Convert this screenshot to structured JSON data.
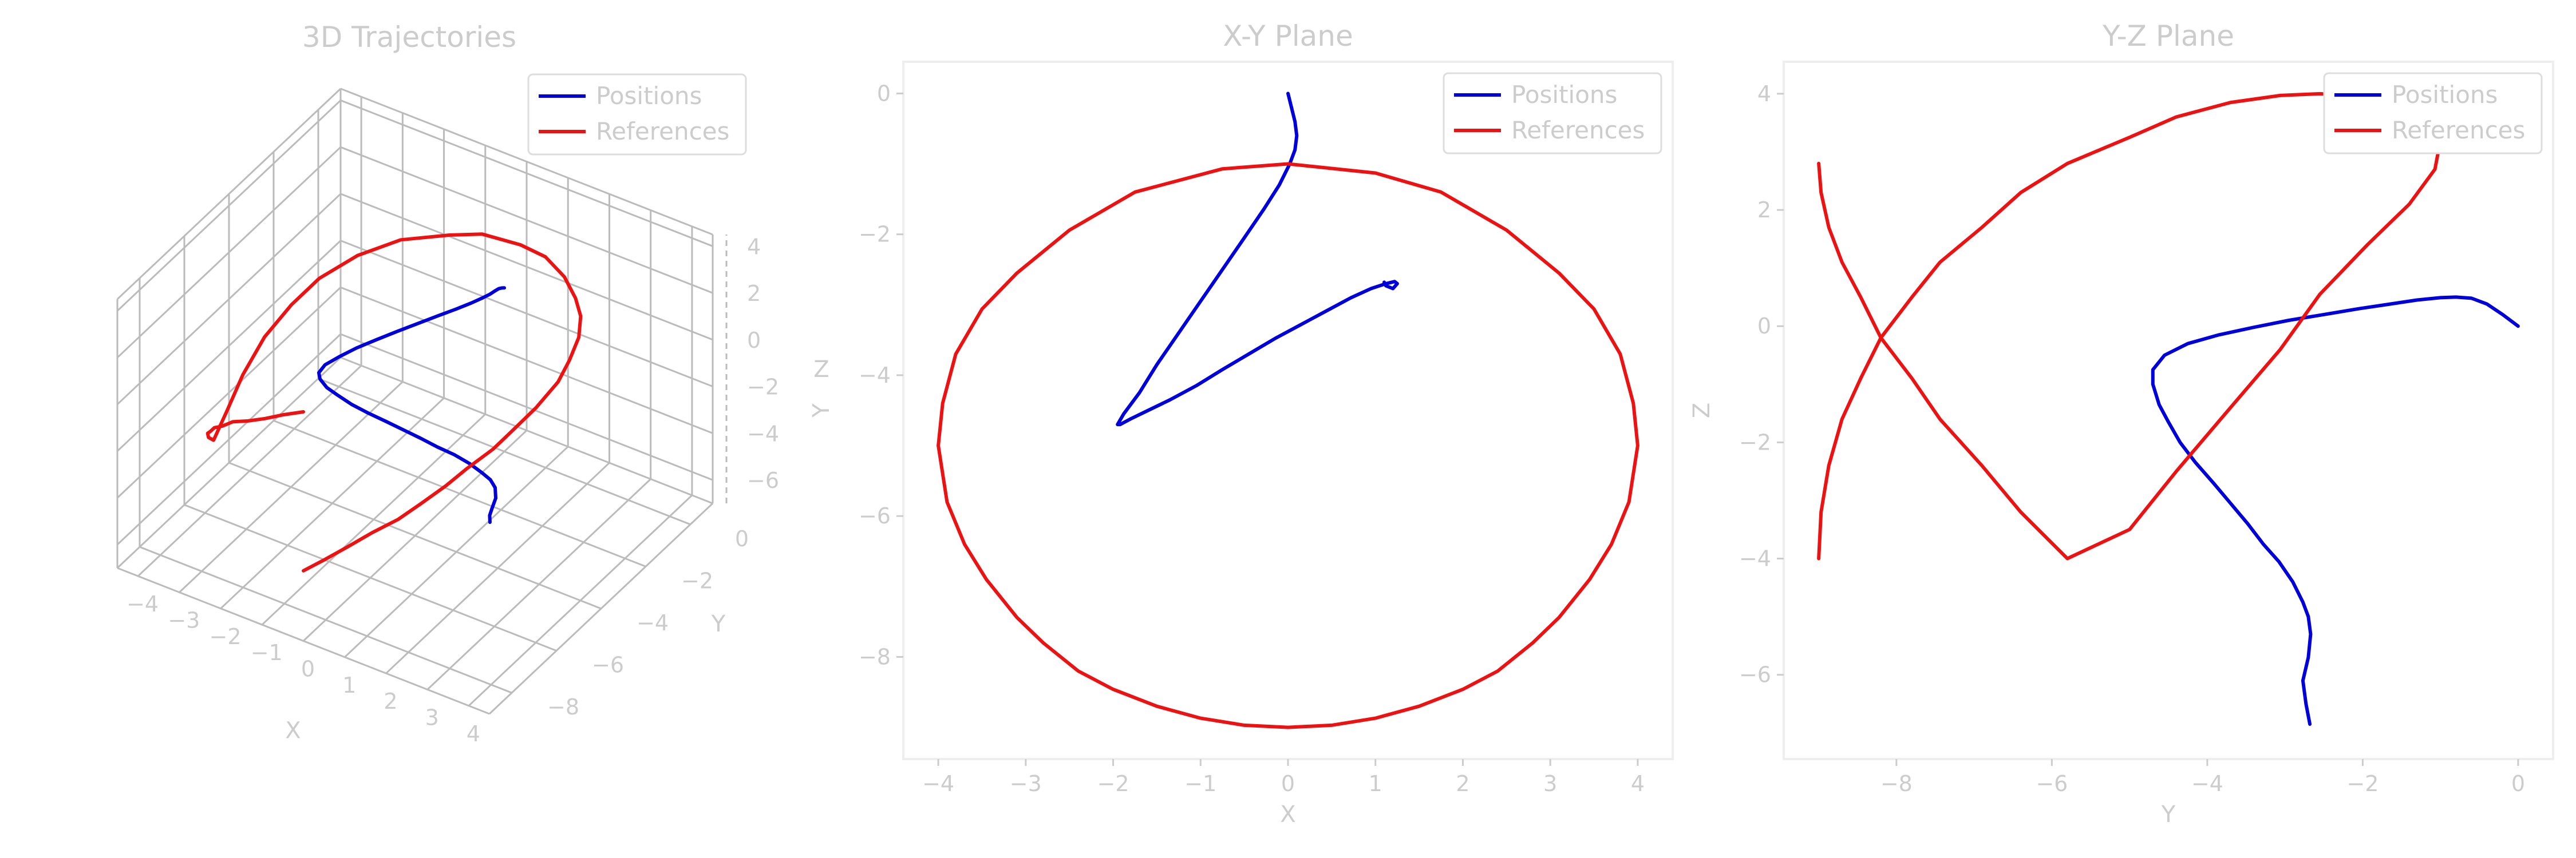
{
  "chart_data": [
    {
      "type": "line3d",
      "title": "3D Trajectories",
      "xlabel": "X",
      "ylabel": "Y",
      "zlabel": "Z",
      "xlim": [
        -4.5,
        4.5
      ],
      "ylim": [
        -9,
        1
      ],
      "zlim": [
        -7,
        4.5
      ],
      "xticks": [
        -4,
        -3,
        -2,
        -1,
        0,
        1,
        2,
        3,
        4
      ],
      "yticks": [
        -8,
        -6,
        -4,
        -2,
        0
      ],
      "zticks": [
        -6,
        -4,
        -2,
        0,
        2,
        4
      ],
      "legend": {
        "position": "top-right",
        "entries": [
          "Positions",
          "References"
        ]
      },
      "series": [
        {
          "name": "Positions",
          "color": "#0000dd",
          "source": "positions"
        },
        {
          "name": "References",
          "color": "#ee1111",
          "source": "references"
        }
      ]
    },
    {
      "type": "line",
      "title": "X-Y Plane",
      "xlabel": "X",
      "ylabel": "Y",
      "xlim": [
        -4.4,
        4.4
      ],
      "ylim": [
        -9.45,
        0.45
      ],
      "xticks": [
        -4,
        -3,
        -2,
        -1,
        0,
        1,
        2,
        3,
        4
      ],
      "yticks": [
        -8,
        -6,
        -4,
        -2,
        0
      ],
      "legend": {
        "position": "top-right",
        "entries": [
          "Positions",
          "References"
        ]
      },
      "series": [
        {
          "name": "Positions",
          "color": "#0000dd",
          "source": "positions",
          "x_dim": "x",
          "y_dim": "y"
        },
        {
          "name": "References",
          "color": "#ee1111",
          "source": "references",
          "x_dim": "x",
          "y_dim": "y"
        }
      ]
    },
    {
      "type": "line",
      "title": "Y-Z Plane",
      "xlabel": "Y",
      "ylabel": "Z",
      "xlim": [
        -9.45,
        0.45
      ],
      "ylim": [
        -7.45,
        4.55
      ],
      "xticks": [
        -8,
        -6,
        -4,
        -2,
        0
      ],
      "yticks": [
        -6,
        -4,
        -2,
        0,
        2,
        4
      ],
      "legend": {
        "position": "top-right",
        "entries": [
          "Positions",
          "References"
        ]
      },
      "series": [
        {
          "name": "Positions",
          "color": "#0000dd",
          "source": "positions",
          "x_dim": "y",
          "y_dim": "z"
        },
        {
          "name": "References",
          "color": "#ee1111",
          "source": "references",
          "x_dim": "y",
          "y_dim": "z"
        }
      ]
    }
  ],
  "trajectories": {
    "positions": {
      "x": [
        0.0,
        0.04,
        0.08,
        0.1,
        0.08,
        0.02,
        -0.1,
        -0.28,
        -0.5,
        -0.75,
        -1.0,
        -1.25,
        -1.5,
        -1.7,
        -1.88,
        -1.95,
        -1.92,
        -1.8,
        -1.6,
        -1.35,
        -1.05,
        -0.75,
        -0.45,
        -0.15,
        0.15,
        0.45,
        0.72,
        0.95,
        1.12,
        1.22,
        1.25,
        1.2,
        1.12,
        1.1
      ],
      "y": [
        0.0,
        -0.2,
        -0.4,
        -0.6,
        -0.8,
        -1.0,
        -1.3,
        -1.65,
        -2.05,
        -2.5,
        -2.95,
        -3.4,
        -3.85,
        -4.25,
        -4.55,
        -4.7,
        -4.7,
        -4.62,
        -4.5,
        -4.35,
        -4.15,
        -3.92,
        -3.7,
        -3.48,
        -3.28,
        -3.08,
        -2.9,
        -2.77,
        -2.7,
        -2.67,
        -2.7,
        -2.77,
        -2.73,
        -2.68
      ],
      "z": [
        0.0,
        0.2,
        0.38,
        0.48,
        0.5,
        0.49,
        0.45,
        0.38,
        0.3,
        0.2,
        0.1,
        -0.02,
        -0.15,
        -0.3,
        -0.5,
        -0.75,
        -1.0,
        -1.35,
        -1.65,
        -2.0,
        -2.35,
        -2.7,
        -3.05,
        -3.4,
        -3.75,
        -4.05,
        -4.4,
        -4.75,
        -5.0,
        -5.3,
        -5.7,
        -6.1,
        -6.5,
        -6.85
      ]
    },
    "references": {
      "x": [
        0.0,
        0.5,
        1.0,
        1.5,
        2.0,
        2.4,
        2.8,
        3.1,
        3.45,
        3.7,
        3.9,
        4.0,
        3.95,
        3.8,
        3.5,
        3.1,
        2.5,
        1.75,
        1.0,
        0.0,
        -0.75,
        -1.75,
        -2.5,
        -3.1,
        -3.5,
        -3.8,
        -3.95,
        -4.0,
        -3.9,
        -3.7,
        -3.45,
        -3.1,
        -2.8,
        -2.4,
        -2.0,
        -1.5,
        -1.0,
        -0.5,
        0.0
      ],
      "y": [
        -9.0,
        -8.97,
        -8.87,
        -8.7,
        -8.46,
        -8.2,
        -7.8,
        -7.44,
        -6.9,
        -6.4,
        -5.8,
        -5.0,
        -4.4,
        -3.7,
        -3.06,
        -2.55,
        -1.94,
        -1.4,
        -1.13,
        -1.0,
        -1.07,
        -1.4,
        -1.94,
        -2.55,
        -3.06,
        -3.7,
        -4.4,
        -5.0,
        -5.8,
        -6.4,
        -6.9,
        -7.44,
        -7.8,
        -8.2,
        -8.46,
        -8.7,
        -8.87,
        -8.97,
        -9.0
      ],
      "z": [
        -4.0,
        -3.2,
        -2.4,
        -1.6,
        -0.9,
        -0.2,
        0.5,
        1.1,
        1.7,
        2.3,
        2.8,
        3.25,
        3.6,
        3.85,
        3.97,
        4.0,
        3.95,
        3.8,
        3.55,
        3.2,
        2.7,
        2.1,
        1.4,
        0.55,
        -0.4,
        -1.4,
        -2.5,
        -3.5,
        -4.0,
        -3.2,
        -2.4,
        -1.6,
        -0.9,
        -0.2,
        0.5,
        1.1,
        1.7,
        2.3,
        2.8
      ]
    }
  }
}
